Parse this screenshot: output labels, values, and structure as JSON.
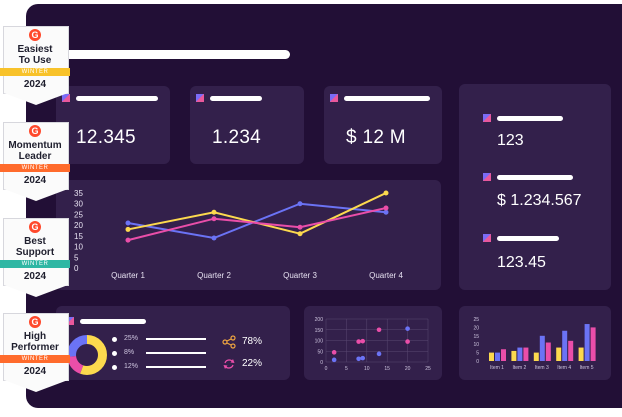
{
  "colors": {
    "background": "#220f36",
    "card": "#33204b",
    "blue": "#6b73f5",
    "pink": "#ea4ea9",
    "yellow": "#fcd94e",
    "teal": "#2fb7a4",
    "orange": "#ff6b2c",
    "g2_red": "#ff492c"
  },
  "badges": [
    {
      "name_line1": "Easiest",
      "name_line2": "To Use",
      "season": "WINTER",
      "year": "2024",
      "ribbon_color": "#f8c22a"
    },
    {
      "name_line1": "Momentum",
      "name_line2": "Leader",
      "season": "WINTER",
      "year": "2024",
      "ribbon_color": "#ff6b2c"
    },
    {
      "name_line1": "Best",
      "name_line2": "Support",
      "season": "WINTER",
      "year": "2024",
      "ribbon_color": "#2fb7a4"
    },
    {
      "name_line1": "High",
      "name_line2": "Performer",
      "season": "WINTER",
      "year": "2024",
      "ribbon_color": "#ff6b2c"
    }
  ],
  "g2_logo": "G",
  "kpis": [
    {
      "value": "12.345"
    },
    {
      "value": "1.234"
    },
    {
      "value": "$ 12 M"
    }
  ],
  "side_stats": [
    {
      "value": "123"
    },
    {
      "value": "$ 1.234.567"
    },
    {
      "value": "123.45"
    }
  ],
  "line_chart": {
    "type": "line",
    "categories": [
      "Quarter 1",
      "Quarter 2",
      "Quarter 3",
      "Quarter 4"
    ],
    "y_ticks": [
      "35",
      "30",
      "25",
      "20",
      "15",
      "10",
      "5",
      "0"
    ],
    "ylim": [
      0,
      35
    ],
    "series": [
      {
        "name": "blue",
        "color": "#6b73f5",
        "values": [
          21,
          14,
          30,
          26
        ]
      },
      {
        "name": "yellow",
        "color": "#fcd94e",
        "values": [
          18,
          26,
          16,
          35
        ]
      },
      {
        "name": "pink",
        "color": "#ea4ea9",
        "values": [
          13,
          23,
          19,
          28
        ]
      }
    ]
  },
  "donut": {
    "segments": [
      {
        "label": "25%",
        "value": 25,
        "color": "#fcd94e"
      },
      {
        "label": "8%",
        "value": 8,
        "color": "#ea4ea9"
      },
      {
        "label": "12%",
        "value": 12,
        "color": "#6b73f5"
      }
    ],
    "share_value": "78%",
    "refresh_value": "22%"
  },
  "scatter": {
    "type": "scatter",
    "x_ticks": [
      "0",
      "5",
      "10",
      "15",
      "20",
      "25"
    ],
    "y_ticks": [
      "200",
      "150",
      "100",
      "50",
      "0"
    ],
    "xlim": [
      0,
      25
    ],
    "ylim": [
      0,
      200
    ],
    "points": [
      {
        "x": 2,
        "y": 45,
        "color": "#ea4ea9"
      },
      {
        "x": 2,
        "y": 10,
        "color": "#6b73f5"
      },
      {
        "x": 8,
        "y": 95,
        "color": "#ea4ea9"
      },
      {
        "x": 9,
        "y": 97,
        "color": "#ea4ea9"
      },
      {
        "x": 8,
        "y": 15,
        "color": "#6b73f5"
      },
      {
        "x": 9,
        "y": 18,
        "color": "#6b73f5"
      },
      {
        "x": 13,
        "y": 150,
        "color": "#ea4ea9"
      },
      {
        "x": 13,
        "y": 38,
        "color": "#6b73f5"
      },
      {
        "x": 20,
        "y": 155,
        "color": "#6b73f5"
      },
      {
        "x": 20,
        "y": 95,
        "color": "#ea4ea9"
      }
    ]
  },
  "bar_chart": {
    "type": "bar",
    "categories": [
      "Item 1",
      "Item 2",
      "Item 3",
      "Item 4",
      "Item 5"
    ],
    "y_ticks": [
      "25",
      "20",
      "15",
      "10",
      "5",
      "0"
    ],
    "ylim": [
      0,
      25
    ],
    "series": [
      {
        "name": "yellow",
        "color": "#fcd94e",
        "values": [
          5,
          6,
          5,
          8,
          8
        ]
      },
      {
        "name": "blue",
        "color": "#6b73f5",
        "values": [
          5,
          8,
          15,
          18,
          22
        ]
      },
      {
        "name": "pink",
        "color": "#ea4ea9",
        "values": [
          7,
          8,
          11,
          12,
          20
        ]
      }
    ]
  }
}
